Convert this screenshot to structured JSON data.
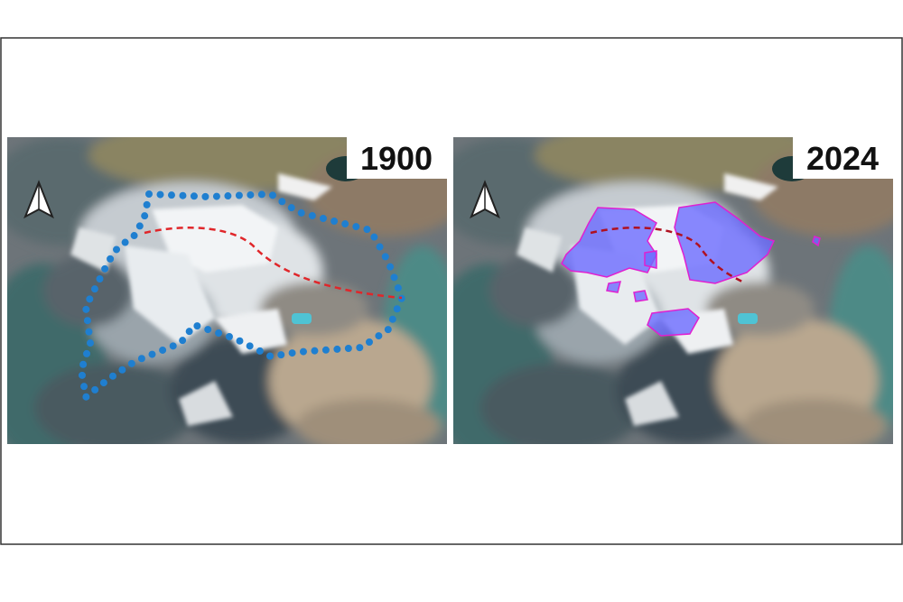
{
  "panels": [
    {
      "label": "1900"
    },
    {
      "label": "2024"
    }
  ]
}
